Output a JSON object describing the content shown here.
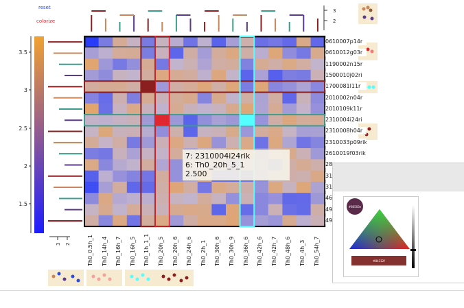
{
  "controls": {
    "reset_label": "reset",
    "colorize_label": "colorize"
  },
  "colors": {
    "accent_red": "#e0262e",
    "accent_blue": "#2b4bd8",
    "highlight_cyan": "#5ff",
    "selection_dark_red": "#8b1e1e",
    "selection_teal": "#3c9c8c"
  },
  "colorbar": {
    "ticks": [
      "3.5",
      "3",
      "2.5",
      "2",
      "1.5"
    ]
  },
  "top_dendrogram": {
    "ticks": [
      "3",
      "2"
    ]
  },
  "left_dendrogram": {
    "ticks": [
      "3",
      "2"
    ]
  },
  "rows": [
    "0610007p14r",
    "0610012g03r",
    "1190002n15r",
    "1500010j02ri",
    "1700081l11r",
    "2010002n04r",
    "2010109k11r",
    "2310004i24ri",
    "2310008h04r",
    "2310033p09rik",
    "2610019f03rik",
    "28",
    "31",
    "31",
    "46",
    "49",
    "49"
  ],
  "columns": [
    "Th0_0.5h_1",
    "Th0_14h_4",
    "Th0_16h_7",
    "Th0_16h_5",
    "Th0_1h_1_1",
    "Th0_20h_5",
    "Th0_20h_6",
    "Th0_24h_6",
    "Th0_2h_1",
    "Th0_30h_6",
    "Th0_30h_9",
    "Th0_36h_6",
    "Th0_42h_6",
    "Th0_42h_7",
    "Th0_48h_6",
    "Th0_4h_3",
    "Th0_54h_7"
  ],
  "tooltip": {
    "line1": "7: 2310004i24rik",
    "line2": "6: Th0_20h_5_1",
    "line3": "2.500"
  },
  "color_picker": {
    "top_label": "#80503e",
    "bottom_label": "#84312f"
  }
}
